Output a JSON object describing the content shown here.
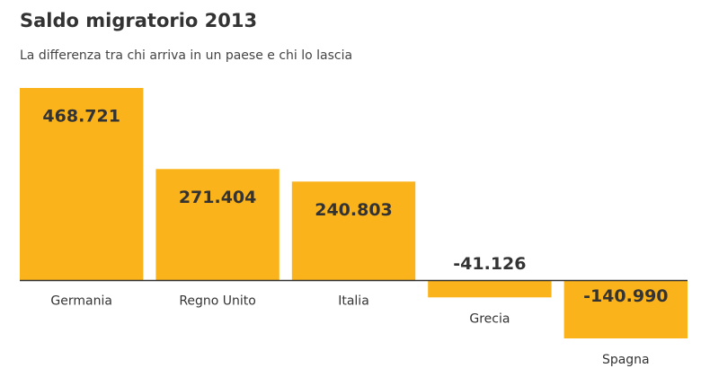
{
  "chart_data": {
    "type": "bar",
    "title": "Saldo migratorio 2013",
    "subtitle": "La differenza tra chi arriva in un paese e chi lo lascia",
    "categories": [
      "Germania",
      "Regno Unito",
      "Italia",
      "Grecia",
      "Spagna"
    ],
    "values": [
      468721,
      271404,
      240803,
      -41126,
      -140990
    ],
    "value_labels": [
      "468.721",
      "271.404",
      "240.803",
      "-41.126",
      "-140.990"
    ],
    "color": "#fbb31b"
  }
}
